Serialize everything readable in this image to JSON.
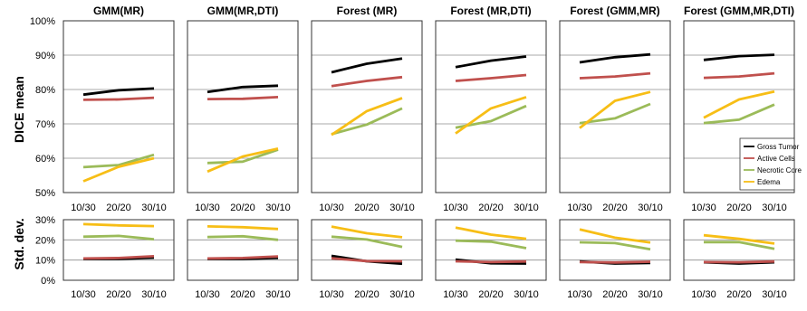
{
  "chart_data": {
    "type": "line",
    "ylabel_top": "DICE mean",
    "ylabel_bottom": "Std. dev.",
    "categories": [
      "10/30",
      "20/20",
      "30/10"
    ],
    "top_ylim": [
      50,
      100
    ],
    "top_yticks": [
      "50%",
      "60%",
      "70%",
      "80%",
      "90%",
      "100%"
    ],
    "bottom_ylim": [
      0,
      30
    ],
    "bottom_yticks": [
      "0%",
      "10%",
      "20%",
      "30%"
    ],
    "grid": true,
    "legend_position": "inside-right of last top panel",
    "series_meta": [
      {
        "name": "Gross Tumor",
        "color": "#000000"
      },
      {
        "name": "Active Cells",
        "color": "#c0504d"
      },
      {
        "name": "Necrotic Core",
        "color": "#9bbb59"
      },
      {
        "name": "Edema",
        "color": "#f7be16"
      }
    ],
    "panels": [
      {
        "title": "GMM(MR)",
        "mean": [
          [
            78.5,
            79.8,
            80.3
          ],
          [
            77.0,
            77.1,
            77.6
          ],
          [
            57.4,
            58.0,
            61.0
          ],
          [
            53.3,
            57.5,
            60.0
          ]
        ],
        "std": [
          [
            10.6,
            10.6,
            11.2
          ],
          [
            10.8,
            11.0,
            11.9
          ],
          [
            21.6,
            22.0,
            20.3
          ],
          [
            27.8,
            27.2,
            26.8
          ]
        ]
      },
      {
        "title": "GMM(MR,DTI)",
        "mean": [
          [
            79.3,
            80.7,
            81.1
          ],
          [
            77.2,
            77.3,
            77.8
          ],
          [
            58.6,
            59.0,
            62.5
          ],
          [
            56.1,
            60.5,
            62.8
          ]
        ],
        "std": [
          [
            10.6,
            10.6,
            11.1
          ],
          [
            10.8,
            11.0,
            11.8
          ],
          [
            21.4,
            21.8,
            20.0
          ],
          [
            26.7,
            26.3,
            25.4
          ]
        ]
      },
      {
        "title": "Forest (MR)",
        "mean": [
          [
            85.0,
            87.5,
            89.0
          ],
          [
            81.0,
            82.5,
            83.6
          ],
          [
            67.0,
            69.8,
            74.5
          ],
          [
            66.8,
            73.7,
            77.5
          ]
        ],
        "std": [
          [
            12.1,
            9.4,
            8.2
          ],
          [
            10.9,
            9.5,
            9.4
          ],
          [
            21.6,
            20.2,
            16.5
          ],
          [
            26.6,
            23.3,
            21.3
          ]
        ]
      },
      {
        "title": "Forest (MR,DTI)",
        "mean": [
          [
            86.5,
            88.4,
            89.6
          ],
          [
            82.5,
            83.3,
            84.2
          ],
          [
            68.9,
            70.8,
            75.2
          ],
          [
            67.2,
            74.5,
            77.8
          ]
        ],
        "std": [
          [
            10.2,
            8.4,
            8.3
          ],
          [
            9.4,
            9.0,
            9.3
          ],
          [
            19.6,
            19.1,
            15.9
          ],
          [
            26.1,
            22.6,
            20.5
          ]
        ]
      },
      {
        "title": "Forest (GMM,MR)",
        "mean": [
          [
            87.9,
            89.4,
            90.2
          ],
          [
            83.3,
            83.8,
            84.7
          ],
          [
            70.2,
            71.6,
            75.8
          ],
          [
            68.8,
            76.7,
            79.3
          ]
        ],
        "std": [
          [
            9.3,
            8.3,
            8.6
          ],
          [
            9.0,
            8.8,
            9.2
          ],
          [
            18.8,
            18.4,
            15.3
          ],
          [
            25.2,
            21.1,
            18.7
          ]
        ]
      },
      {
        "title": "Forest (GMM,MR,DTI)",
        "mean": [
          [
            88.6,
            89.7,
            90.1
          ],
          [
            83.4,
            83.8,
            84.7
          ],
          [
            70.2,
            71.2,
            75.6
          ],
          [
            71.8,
            77.1,
            79.4
          ]
        ],
        "std": [
          [
            8.9,
            8.3,
            8.9
          ],
          [
            9.0,
            8.9,
            9.3
          ],
          [
            18.9,
            18.9,
            15.6
          ],
          [
            22.3,
            20.5,
            18.2
          ]
        ]
      }
    ]
  }
}
